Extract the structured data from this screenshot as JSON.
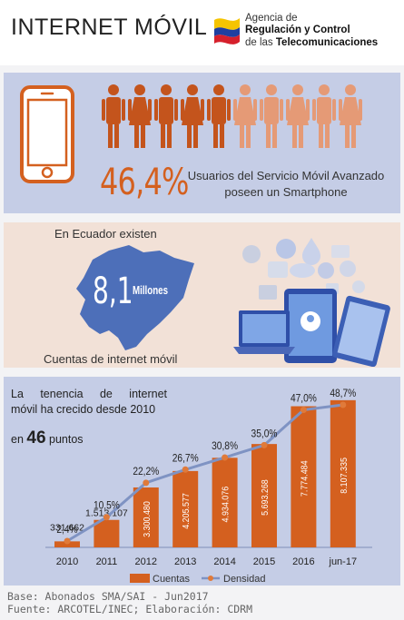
{
  "header": {
    "title": "INTERNET MÓVIL",
    "org_line1": "Agencia de",
    "org_line2": "Regulación y Control",
    "org_line3_a": "de las ",
    "org_line3_b": "Telecomunicaciones",
    "flag_colors": [
      "#f5c400",
      "#1f3fa0",
      "#d6202c"
    ]
  },
  "smartphone": {
    "percent": "46,4%",
    "description": "Usuarios del Servicio Móvil Avanzado poseen un Smartphone",
    "people_total": 10,
    "people_highlighted": 5,
    "highlight_color": "#c4541c",
    "muted_color": "#e59a76"
  },
  "ecuador": {
    "intro": "En Ecuador existen",
    "number": "8,1",
    "unit": "Millones",
    "footer": "Cuentas de internet móvil",
    "map_color": "#4d6fb9"
  },
  "growth": {
    "line1": "La tenencia de internet",
    "line2": "móvil ha crecido desde 2010",
    "line3_prefix": "en",
    "line3_number": "46",
    "line3_suffix": "puntos"
  },
  "chart_data": {
    "type": "bar",
    "categories": [
      "2010",
      "2011",
      "2012",
      "2013",
      "2014",
      "2015",
      "2016",
      "jun-17"
    ],
    "series": [
      {
        "name": "Cuentas",
        "type": "bar",
        "values": [
          331662,
          1513107,
          3300480,
          4205577,
          4934076,
          5693268,
          7774484,
          8107335
        ],
        "labels": [
          "331.662",
          "1.513.107",
          "3.300.480",
          "4.205.577",
          "4.934.076",
          "5.693.268",
          "7.774.484",
          "8.107.335"
        ],
        "color": "#d4601f"
      },
      {
        "name": "Densidad",
        "type": "line",
        "values": [
          2.4,
          10.5,
          22.2,
          26.7,
          30.8,
          35.0,
          47.0,
          48.7
        ],
        "labels": [
          "2,4%",
          "10,5%",
          "22,2%",
          "26,7%",
          "30,8%",
          "35,0%",
          "47,0%",
          "48,7%"
        ],
        "color": "#7f93c3"
      }
    ],
    "legend_position": "bottom"
  },
  "footer": {
    "line1": "Base: Abonados SMA/SAI - Jun2017",
    "line2": "Fuente: ARCOTEL/INEC; Elaboración: CDRM"
  }
}
